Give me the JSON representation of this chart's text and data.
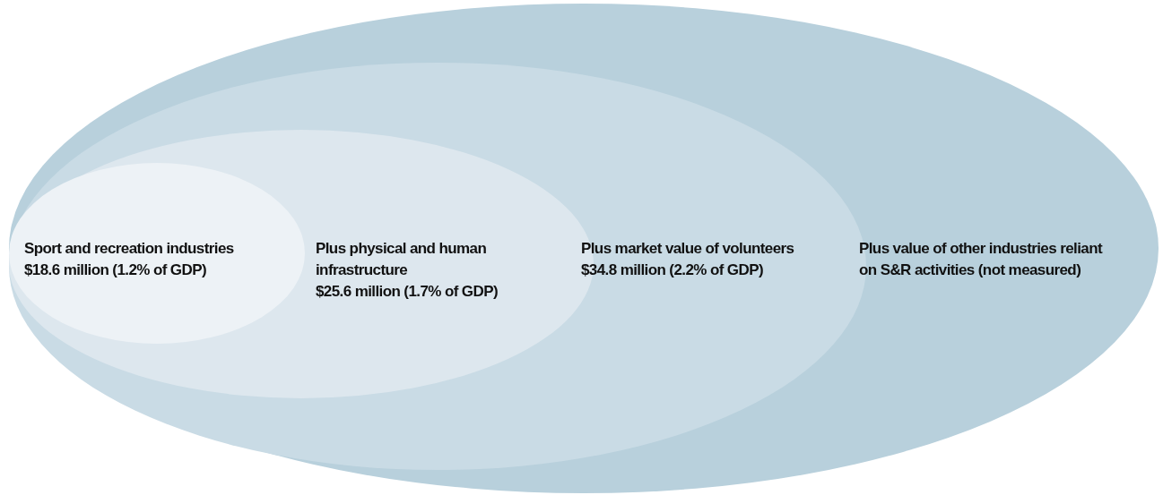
{
  "chart_data": {
    "type": "other",
    "categories": [
      "Sport and recreation industries",
      "Plus physical and human infrastructure",
      "Plus market value of volunteers",
      "Plus value of other industries reliant on S&R activities (not measured)"
    ],
    "values": [
      18.6,
      25.6,
      34.8,
      null
    ],
    "value_labels": [
      "$18.6 million",
      "$25.6 million",
      "$34.8 million",
      null
    ],
    "annotations": [
      {
        "text": "(1.2% of GDP)",
        "x": "Sport and recreation industries"
      },
      {
        "text": "(1.7% of GDP)",
        "x": "Plus physical and human infrastructure"
      },
      {
        "text": "(2.2% of GDP)",
        "x": "Plus market value of volunteers"
      }
    ],
    "colors": [
      "#edf2f6",
      "#dde7ee",
      "#c9dbe5",
      "#b8d0dc"
    ]
  }
}
